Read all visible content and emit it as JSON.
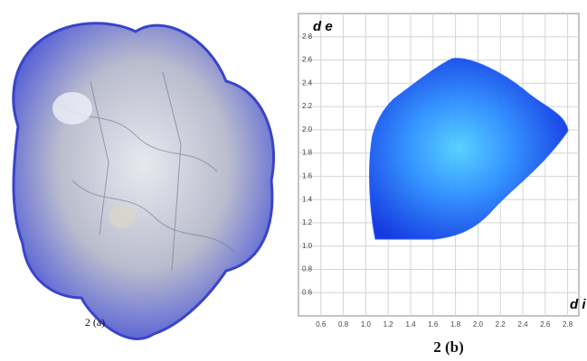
{
  "panel_a": {
    "caption": "2 (a)"
  },
  "chart_data": {
    "type": "fingerprint",
    "xlabel": "d i",
    "ylabel": "d e",
    "caption": "2 (b)",
    "xlim": [
      0.4,
      2.9
    ],
    "ylim": [
      0.4,
      3.0
    ],
    "xticks": [
      0.6,
      0.8,
      {
        "value": 1,
        "label": "1.0"
      },
      1.2,
      1.4,
      1.6,
      1.8,
      {
        "value": 2,
        "label": "2.0"
      },
      2.2,
      2.4,
      2.6,
      2.8
    ],
    "yticks": [
      0.6,
      0.8,
      {
        "value": 1,
        "label": "1.0"
      },
      1.2,
      1.4,
      1.6,
      1.8,
      {
        "value": 2,
        "label": "2.0"
      },
      2.2,
      2.4,
      2.6,
      2.8
    ],
    "grid": true,
    "color": "#1f5fff"
  }
}
